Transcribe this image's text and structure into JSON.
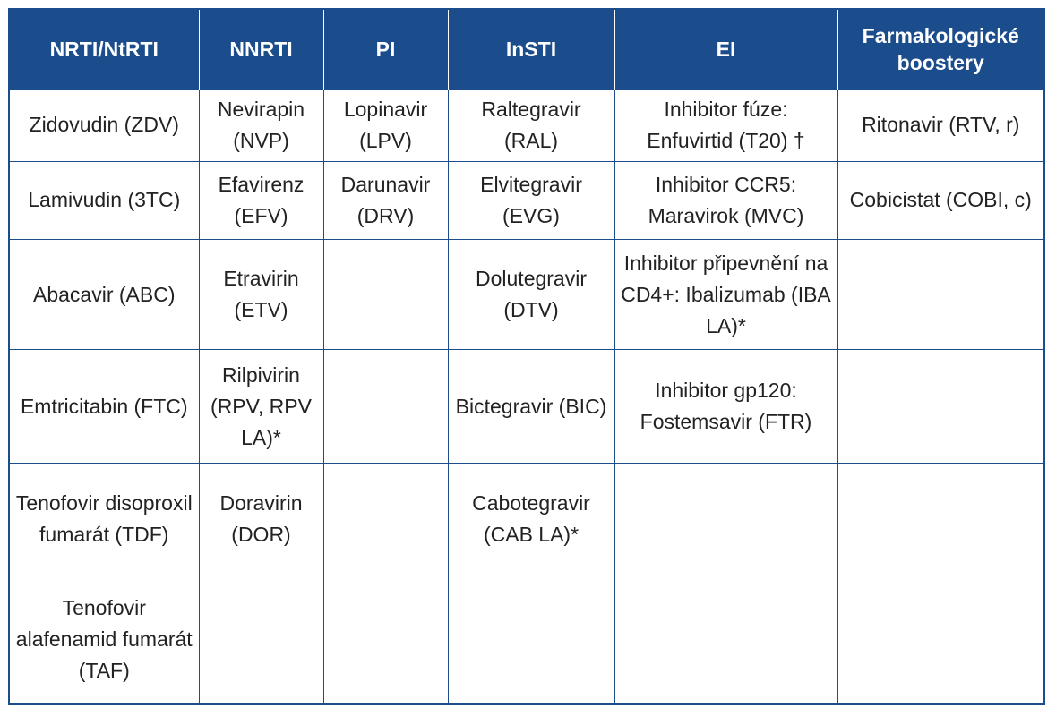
{
  "table": {
    "headers": [
      "NRTI/NtRTI",
      "NNRTI",
      "PI",
      "InSTI",
      "EI",
      "Farmakologické boostery"
    ],
    "rows": [
      [
        "Zidovudin (ZDV)",
        "Nevirapin (NVP)",
        "Lopinavir (LPV)",
        "Raltegravir (RAL)",
        "Inhibitor fúze: Enfuvirtid (T20) †",
        "Ritonavir (RTV, r)"
      ],
      [
        "Lamivudin (3TC)",
        "Efavirenz (EFV)",
        "Darunavir (DRV)",
        "Elvitegravir (EVG)",
        "Inhibitor CCR5: Maravirok (MVC)",
        "Cobicistat (COBI, c)"
      ],
      [
        "Abacavir (ABC)",
        "Etravirin (ETV)",
        "",
        "Dolutegravir (DTV)",
        "Inhibitor připevnění na CD4+: Ibalizumab (IBA LA)*",
        ""
      ],
      [
        "Emtricitabin (FTC)",
        "Rilpivirin (RPV, RPV LA)*",
        "",
        "Bictegravir (BIC)",
        "Inhibitor gp120: Fostemsavir (FTR)",
        ""
      ],
      [
        "Tenofovir disoproxil fumarát (TDF)",
        "Doravirin (DOR)",
        "",
        "Cabotegravir (CAB LA)*",
        "",
        ""
      ],
      [
        "Tenofovir alafenamid fumarát (TAF)",
        "",
        "",
        "",
        "",
        ""
      ]
    ]
  },
  "colors": {
    "header_bg": "#1b4c8c",
    "header_text": "#ffffff",
    "border": "#1b4c8c",
    "body_text": "#222222"
  }
}
